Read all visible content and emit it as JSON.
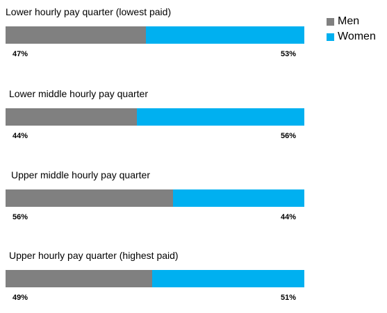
{
  "chart_data": {
    "type": "bar",
    "stacked": true,
    "orientation": "horizontal",
    "categories": [
      "Lower hourly pay quarter (lowest paid)",
      "Lower middle hourly pay quarter",
      "Upper middle hourly pay quarter",
      "Upper hourly pay quarter (highest paid)"
    ],
    "series": [
      {
        "name": "Men",
        "values": [
          47,
          44,
          56,
          49
        ],
        "labels": [
          "47%",
          "44%",
          "56%",
          "49%"
        ],
        "color": "#808080"
      },
      {
        "name": "Women",
        "values": [
          53,
          56,
          44,
          51
        ],
        "labels": [
          "53%",
          "56%",
          "44%",
          "51%"
        ],
        "color": "#00B0F0"
      }
    ],
    "legend_position": "top-right",
    "grid": false
  }
}
